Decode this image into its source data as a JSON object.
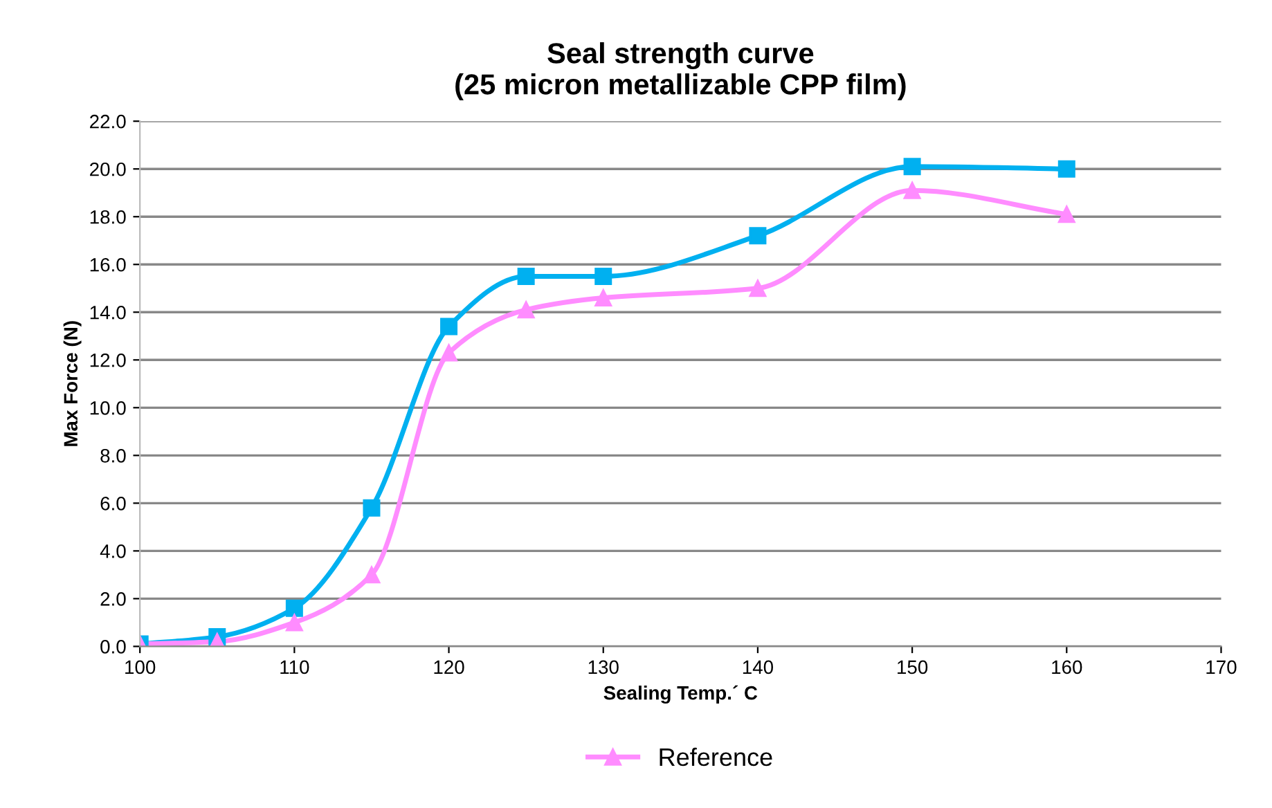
{
  "chart_data": {
    "type": "line",
    "title": "Seal strength curve\n(25 micron metallizable CPP film)",
    "xlabel": "Sealing Temp.´ C",
    "ylabel": "Max Force (N)",
    "x": [
      100,
      105,
      110,
      115,
      120,
      125,
      130,
      140,
      150,
      160
    ],
    "series": [
      {
        "color": "#00b0f0",
        "marker": "square",
        "values": [
          0.1,
          0.4,
          1.6,
          5.8,
          13.4,
          15.5,
          15.5,
          17.2,
          20.1,
          20.0
        ]
      },
      {
        "name": "Reference",
        "color": "#ff8cff",
        "marker": "triangle",
        "values": [
          0.1,
          0.2,
          1.0,
          3.0,
          12.3,
          14.1,
          14.6,
          15.0,
          19.1,
          18.1
        ]
      }
    ],
    "xlim": [
      100,
      170
    ],
    "xticks": [
      100,
      110,
      120,
      130,
      140,
      150,
      160,
      170
    ],
    "ylim": [
      0,
      22
    ],
    "yticks": [
      {
        "value": 0,
        "label": "0.0"
      },
      {
        "value": 2,
        "label": "2.0"
      },
      {
        "value": 4,
        "label": "4.0"
      },
      {
        "value": 6,
        "label": "6.0"
      },
      {
        "value": 8,
        "label": "8.0"
      },
      {
        "value": 10,
        "label": "10.0"
      },
      {
        "value": 12,
        "label": "12.0"
      },
      {
        "value": 14,
        "label": "14.0"
      },
      {
        "value": 16,
        "label": "16.0"
      },
      {
        "value": 18,
        "label": "18.0"
      },
      {
        "value": 20,
        "label": "20.0"
      },
      {
        "value": 22,
        "label": "22.0"
      }
    ],
    "grid": "y",
    "legend": "bottom",
    "line_style": "solid"
  }
}
